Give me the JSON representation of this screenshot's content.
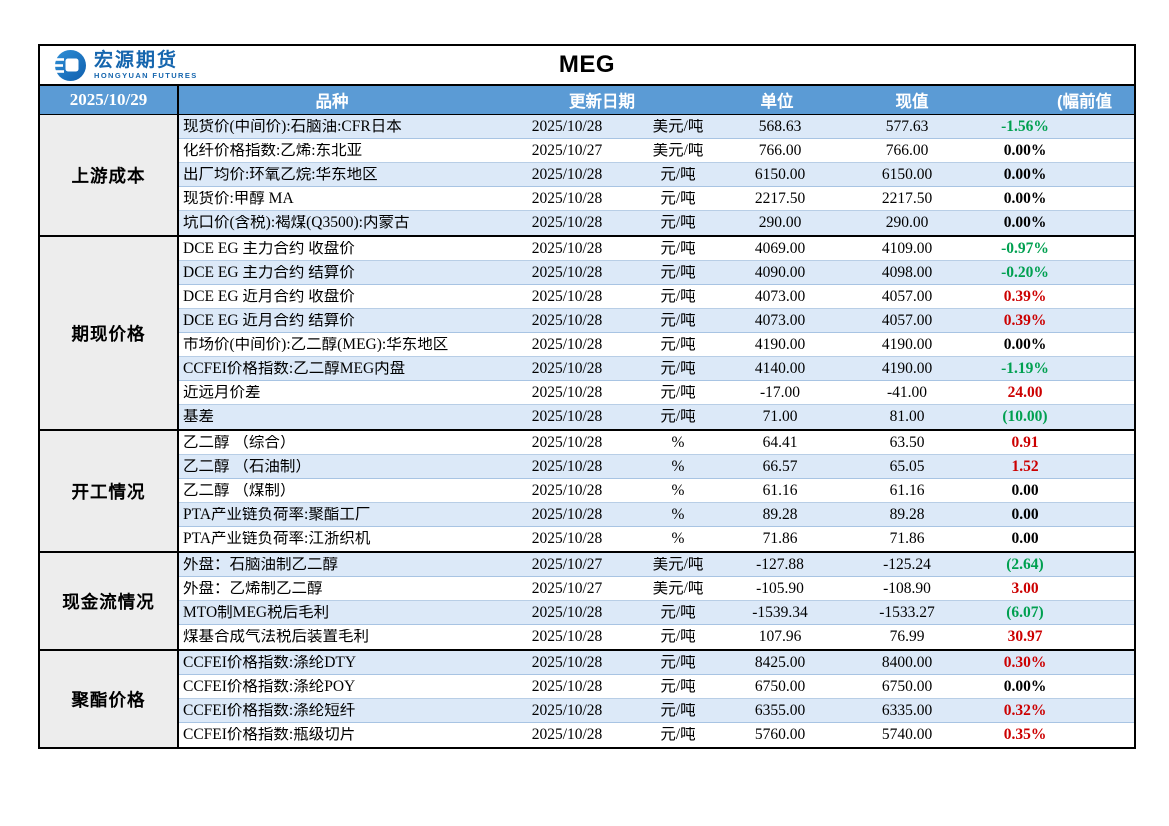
{
  "brand": {
    "name_cn": "宏源期货",
    "name_en": "HONGYUAN FUTURES"
  },
  "title": "MEG",
  "header": {
    "report_date": "2025/10/29",
    "col_item": "品种",
    "col_update_date": "更新日期",
    "col_unit": "单位",
    "col_current": "现值",
    "col_change_prev": "(幅前值"
  },
  "colors": {
    "header_bg": "#5B9BD5",
    "stripe_blue": "#DCE9F8",
    "group_bg": "#EDEDED",
    "red": "#CC0000",
    "green": "#00A050",
    "black": "#000000",
    "brand_blue": "#1666AE"
  },
  "groups": [
    {
      "label": "上游成本",
      "rows": [
        {
          "item": "现货价(中间价):石脑油:CFR日本",
          "date": "2025/10/28",
          "unit": "美元/吨",
          "current": "568.63",
          "previous": "577.63",
          "change": "-1.56%",
          "change_color": "green"
        },
        {
          "item": "化纤价格指数:乙烯:东北亚",
          "date": "2025/10/27",
          "unit": "美元/吨",
          "current": "766.00",
          "previous": "766.00",
          "change": "0.00%",
          "change_color": "black"
        },
        {
          "item": "出厂均价:环氧乙烷:华东地区",
          "date": "2025/10/28",
          "unit": "元/吨",
          "current": "6150.00",
          "previous": "6150.00",
          "change": "0.00%",
          "change_color": "black"
        },
        {
          "item": "现货价:甲醇 MA",
          "date": "2025/10/28",
          "unit": "元/吨",
          "current": "2217.50",
          "previous": "2217.50",
          "change": "0.00%",
          "change_color": "black"
        },
        {
          "item": "坑口价(含税):褐煤(Q3500):内蒙古",
          "date": "2025/10/28",
          "unit": "元/吨",
          "current": "290.00",
          "previous": "290.00",
          "change": "0.00%",
          "change_color": "black"
        }
      ]
    },
    {
      "label": "期现价格",
      "rows": [
        {
          "item": "DCE EG 主力合约 收盘价",
          "date": "2025/10/28",
          "unit": "元/吨",
          "current": "4069.00",
          "previous": "4109.00",
          "change": "-0.97%",
          "change_color": "green"
        },
        {
          "item": "DCE EG 主力合约 结算价",
          "date": "2025/10/28",
          "unit": "元/吨",
          "current": "4090.00",
          "previous": "4098.00",
          "change": "-0.20%",
          "change_color": "green"
        },
        {
          "item": "DCE EG 近月合约 收盘价",
          "date": "2025/10/28",
          "unit": "元/吨",
          "current": "4073.00",
          "previous": "4057.00",
          "change": "0.39%",
          "change_color": "red"
        },
        {
          "item": "DCE EG 近月合约 结算价",
          "date": "2025/10/28",
          "unit": "元/吨",
          "current": "4073.00",
          "previous": "4057.00",
          "change": "0.39%",
          "change_color": "red"
        },
        {
          "item": "市场价(中间价):乙二醇(MEG):华东地区",
          "date": "2025/10/28",
          "unit": "元/吨",
          "current": "4190.00",
          "previous": "4190.00",
          "change": "0.00%",
          "change_color": "black"
        },
        {
          "item": "CCFEI价格指数:乙二醇MEG内盘",
          "date": "2025/10/28",
          "unit": "元/吨",
          "current": "4140.00",
          "previous": "4190.00",
          "change": "-1.19%",
          "change_color": "green"
        },
        {
          "item": "近远月价差",
          "date": "2025/10/28",
          "unit": "元/吨",
          "current": "-17.00",
          "previous": "-41.00",
          "change": "24.00",
          "change_color": "red"
        },
        {
          "item": "基差",
          "date": "2025/10/28",
          "unit": "元/吨",
          "current": "71.00",
          "previous": "81.00",
          "change": "(10.00)",
          "change_color": "green"
        }
      ]
    },
    {
      "label": "开工情况",
      "rows": [
        {
          "item": "乙二醇 （综合）",
          "date": "2025/10/28",
          "unit": "%",
          "current": "64.41",
          "previous": "63.50",
          "change": "0.91",
          "change_color": "red"
        },
        {
          "item": "乙二醇 （石油制）",
          "date": "2025/10/28",
          "unit": "%",
          "current": "66.57",
          "previous": "65.05",
          "change": "1.52",
          "change_color": "red"
        },
        {
          "item": "乙二醇 （煤制）",
          "date": "2025/10/28",
          "unit": "%",
          "current": "61.16",
          "previous": "61.16",
          "change": "0.00",
          "change_color": "black"
        },
        {
          "item": "PTA产业链负荷率:聚酯工厂",
          "date": "2025/10/28",
          "unit": "%",
          "current": "89.28",
          "previous": "89.28",
          "change": "0.00",
          "change_color": "black"
        },
        {
          "item": "PTA产业链负荷率:江浙织机",
          "date": "2025/10/28",
          "unit": "%",
          "current": "71.86",
          "previous": "71.86",
          "change": "0.00",
          "change_color": "black"
        }
      ]
    },
    {
      "label": "现金流情况",
      "rows": [
        {
          "item": "外盘：石脑油制乙二醇",
          "date": "2025/10/27",
          "unit": "美元/吨",
          "current": "-127.88",
          "previous": "-125.24",
          "change": "(2.64)",
          "change_color": "green"
        },
        {
          "item": "外盘：乙烯制乙二醇",
          "date": "2025/10/27",
          "unit": "美元/吨",
          "current": "-105.90",
          "previous": "-108.90",
          "change": "3.00",
          "change_color": "red"
        },
        {
          "item": "MTO制MEG税后毛利",
          "date": "2025/10/28",
          "unit": "元/吨",
          "current": "-1539.34",
          "previous": "-1533.27",
          "change": "(6.07)",
          "change_color": "green"
        },
        {
          "item": "煤基合成气法税后装置毛利",
          "date": "2025/10/28",
          "unit": "元/吨",
          "current": "107.96",
          "previous": "76.99",
          "change": "30.97",
          "change_color": "red"
        }
      ]
    },
    {
      "label": "聚酯价格",
      "rows": [
        {
          "item": "CCFEI价格指数:涤纶DTY",
          "date": "2025/10/28",
          "unit": "元/吨",
          "current": "8425.00",
          "previous": "8400.00",
          "change": "0.30%",
          "change_color": "red"
        },
        {
          "item": "CCFEI价格指数:涤纶POY",
          "date": "2025/10/28",
          "unit": "元/吨",
          "current": "6750.00",
          "previous": "6750.00",
          "change": "0.00%",
          "change_color": "black"
        },
        {
          "item": "CCFEI价格指数:涤纶短纤",
          "date": "2025/10/28",
          "unit": "元/吨",
          "current": "6355.00",
          "previous": "6335.00",
          "change": "0.32%",
          "change_color": "red"
        },
        {
          "item": "CCFEI价格指数:瓶级切片",
          "date": "2025/10/28",
          "unit": "元/吨",
          "current": "5760.00",
          "previous": "5740.00",
          "change": "0.35%",
          "change_color": "red"
        }
      ]
    }
  ]
}
